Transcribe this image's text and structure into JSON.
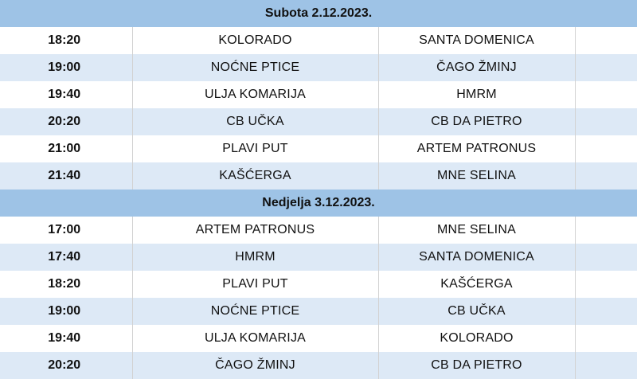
{
  "days": [
    {
      "title": "Subota 2.12.2023.",
      "matches": [
        {
          "time": "18:20",
          "home": "KOLORADO",
          "away": "SANTA DOMENICA"
        },
        {
          "time": "19:00",
          "home": "NOĆNE PTICE",
          "away": "ČAGO ŽMINJ"
        },
        {
          "time": "19:40",
          "home": "ULJA KOMARIJA",
          "away": "HMRM"
        },
        {
          "time": "20:20",
          "home": "CB UČKA",
          "away": "CB DA PIETRO"
        },
        {
          "time": "21:00",
          "home": "PLAVI PUT",
          "away": "ARTEM PATRONUS"
        },
        {
          "time": "21:40",
          "home": "KAŠĆERGA",
          "away": "MNE SELINA"
        }
      ]
    },
    {
      "title": "Nedjelja 3.12.2023.",
      "matches": [
        {
          "time": "17:00",
          "home": "ARTEM PATRONUS",
          "away": "MNE SELINA"
        },
        {
          "time": "17:40",
          "home": "HMRM",
          "away": "SANTA DOMENICA"
        },
        {
          "time": "18:20",
          "home": "PLAVI PUT",
          "away": "KAŠĆERGA"
        },
        {
          "time": "19:00",
          "home": "NOĆNE PTICE",
          "away": "CB UČKA"
        },
        {
          "time": "19:40",
          "home": "ULJA KOMARIJA",
          "away": "KOLORADO"
        },
        {
          "time": "20:20",
          "home": "ČAGO ŽMINJ",
          "away": "CB DA PIETRO"
        }
      ]
    }
  ],
  "colors": {
    "header_band": "#9ec3e6",
    "row_alt": "#dde9f6",
    "row_plain": "#ffffff"
  }
}
